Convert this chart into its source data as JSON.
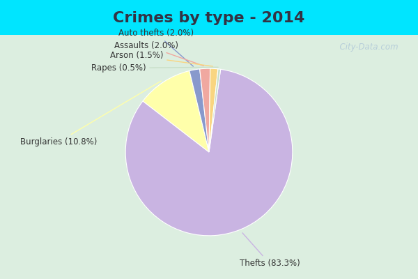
{
  "title": "Crimes by type - 2014",
  "labels": [
    "Thefts",
    "Burglaries",
    "Auto thefts",
    "Assaults",
    "Arson",
    "Rapes"
  ],
  "values": [
    83.3,
    10.8,
    2.0,
    2.0,
    1.5,
    0.5
  ],
  "colors": [
    "#c9b4e2",
    "#ffffaa",
    "#8899cc",
    "#f0a8a0",
    "#f9d580",
    "#c8dfc8"
  ],
  "label_texts": [
    "Thefts (83.3%)",
    "Burglaries (10.8%)",
    "Auto thefts (2.0%)",
    "Assaults (2.0%)",
    "Arson (1.5%)",
    "Rapes (0.5%)"
  ],
  "background_cyan": "#00e5ff",
  "background_main": "#dceee0",
  "title_fontsize": 16,
  "title_color": "#333344",
  "watermark": "  City-Data.com",
  "label_fontsize": 8.5
}
